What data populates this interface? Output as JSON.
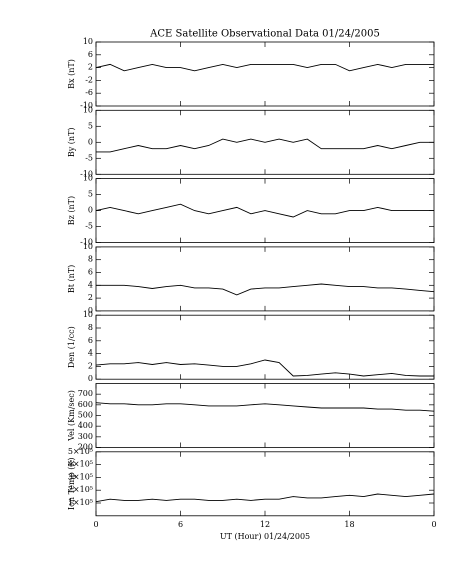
{
  "chart_data": [
    {
      "type": "line",
      "title": "ACE Satellite Observational Data   01/24/2005",
      "y_label": "Bx (nT)",
      "x": [
        0,
        1,
        2,
        3,
        4,
        5,
        6,
        7,
        8,
        9,
        10,
        11,
        12,
        13,
        14,
        15,
        16,
        17,
        18,
        19,
        20,
        21,
        22,
        23,
        24
      ],
      "series": [
        {
          "color": "#000000",
          "values": [
            2,
            3,
            1,
            2,
            3,
            2,
            2,
            1,
            2,
            3,
            2,
            3,
            3,
            3,
            3,
            2,
            3,
            3,
            1,
            2,
            3,
            2,
            3,
            3,
            3
          ]
        }
      ],
      "xlim": [
        0,
        24
      ],
      "xticks": [
        0,
        6,
        12,
        18,
        {
          "value": 24,
          "label": "0"
        }
      ],
      "ylim": [
        -10,
        10
      ],
      "yticks": [
        -10,
        -6,
        -2,
        2,
        6,
        10
      ]
    },
    {
      "type": "line",
      "y_label": "By (nT)",
      "x": [
        0,
        1,
        2,
        3,
        4,
        5,
        6,
        7,
        8,
        9,
        10,
        11,
        12,
        13,
        14,
        15,
        16,
        17,
        18,
        19,
        20,
        21,
        22,
        23,
        24
      ],
      "series": [
        {
          "color": "#000000",
          "values": [
            -3,
            -3,
            -2,
            -1,
            -2,
            -2,
            -1,
            -2,
            -1,
            1,
            0,
            1,
            0,
            1,
            0,
            1,
            -2,
            -2,
            -2,
            -2,
            -1,
            -2,
            -1,
            0,
            0
          ]
        }
      ],
      "xlim": [
        0,
        24
      ],
      "xticks": [
        0,
        6,
        12,
        18,
        {
          "value": 24,
          "label": "0"
        }
      ],
      "ylim": [
        -10,
        10
      ],
      "yticks": [
        -10,
        -5,
        0,
        5,
        10
      ]
    },
    {
      "type": "line",
      "y_label": "Bz (nT)",
      "x": [
        0,
        1,
        2,
        3,
        4,
        5,
        6,
        7,
        8,
        9,
        10,
        11,
        12,
        13,
        14,
        15,
        16,
        17,
        18,
        19,
        20,
        21,
        22,
        23,
        24
      ],
      "series": [
        {
          "color": "#000000",
          "values": [
            0,
            1,
            0,
            -1,
            0,
            1,
            2,
            0,
            -1,
            0,
            1,
            -1,
            0,
            -1,
            -2,
            0,
            -1,
            -1,
            0,
            0,
            1,
            0,
            0,
            0,
            0
          ]
        }
      ],
      "xlim": [
        0,
        24
      ],
      "xticks": [
        0,
        6,
        12,
        18,
        {
          "value": 24,
          "label": "0"
        }
      ],
      "ylim": [
        -10,
        10
      ],
      "yticks": [
        -10,
        -5,
        0,
        5,
        10
      ]
    },
    {
      "type": "line",
      "y_label": "Bt (nT)",
      "x": [
        0,
        1,
        2,
        3,
        4,
        5,
        6,
        7,
        8,
        9,
        10,
        11,
        12,
        13,
        14,
        15,
        16,
        17,
        18,
        19,
        20,
        21,
        22,
        23,
        24
      ],
      "series": [
        {
          "color": "#000000",
          "values": [
            4,
            4,
            4,
            3.8,
            3.5,
            3.8,
            4,
            3.6,
            3.6,
            3.4,
            2.5,
            3.4,
            3.6,
            3.6,
            3.8,
            4,
            4.2,
            4,
            3.8,
            3.8,
            3.6,
            3.6,
            3.4,
            3.2,
            3
          ]
        }
      ],
      "xlim": [
        0,
        24
      ],
      "xticks": [
        0,
        6,
        12,
        18,
        {
          "value": 24,
          "label": "0"
        }
      ],
      "ylim": [
        0,
        10
      ],
      "yticks": [
        0,
        2,
        4,
        6,
        8,
        10
      ]
    },
    {
      "type": "line",
      "y_label": "Den (1/cc)",
      "x": [
        0,
        1,
        2,
        3,
        4,
        5,
        6,
        7,
        8,
        9,
        10,
        11,
        12,
        13,
        14,
        15,
        16,
        17,
        18,
        19,
        20,
        21,
        22,
        23,
        24
      ],
      "series": [
        {
          "color": "#000000",
          "values": [
            2.2,
            2.4,
            2.4,
            2.6,
            2.3,
            2.6,
            2.3,
            2.4,
            2.2,
            2,
            2,
            2.4,
            3,
            2.6,
            0.5,
            0.6,
            0.8,
            1,
            0.8,
            0.5,
            0.7,
            0.9,
            0.6,
            0.5,
            0.5
          ]
        }
      ],
      "xlim": [
        0,
        24
      ],
      "xticks": [
        0,
        6,
        12,
        18,
        {
          "value": 24,
          "label": "0"
        }
      ],
      "ylim": [
        0,
        10
      ],
      "yticks": [
        0,
        2,
        4,
        6,
        8,
        10
      ]
    },
    {
      "type": "line",
      "y_label": "Vel (Km/sec)",
      "x": [
        0,
        1,
        2,
        3,
        4,
        5,
        6,
        7,
        8,
        9,
        10,
        11,
        12,
        13,
        14,
        15,
        16,
        17,
        18,
        19,
        20,
        21,
        22,
        23,
        24
      ],
      "series": [
        {
          "color": "#000000",
          "values": [
            620,
            610,
            610,
            600,
            600,
            610,
            610,
            600,
            590,
            590,
            590,
            600,
            610,
            600,
            590,
            580,
            570,
            570,
            570,
            570,
            560,
            560,
            550,
            550,
            540
          ]
        }
      ],
      "xlim": [
        0,
        24
      ],
      "xticks": [
        0,
        6,
        12,
        18,
        {
          "value": 24,
          "label": "0"
        }
      ],
      "ylim": [
        200,
        800
      ],
      "yticks": [
        200,
        300,
        400,
        500,
        600,
        700
      ]
    },
    {
      "type": "line",
      "y_label": "Ion Temp (K)",
      "x_label": "UT (Hour)  01/24/2005",
      "x": [
        0,
        1,
        2,
        3,
        4,
        5,
        6,
        7,
        8,
        9,
        10,
        11,
        12,
        13,
        14,
        15,
        16,
        17,
        18,
        19,
        20,
        21,
        22,
        23,
        24
      ],
      "series": [
        {
          "color": "#000000",
          "values": [
            110000,
            130000,
            120000,
            120000,
            130000,
            120000,
            130000,
            130000,
            120000,
            120000,
            130000,
            120000,
            130000,
            130000,
            150000,
            140000,
            140000,
            150000,
            160000,
            150000,
            170000,
            160000,
            150000,
            160000,
            170000
          ]
        }
      ],
      "xlim": [
        0,
        24
      ],
      "xticks": [
        0,
        6,
        12,
        18,
        {
          "value": 24,
          "label": "0"
        }
      ],
      "ylim": [
        0,
        500000
      ],
      "yticks": [
        {
          "value": 100000,
          "label": "1×10⁵"
        },
        {
          "value": 200000,
          "label": "2×10⁵"
        },
        {
          "value": 300000,
          "label": "3×10⁵"
        },
        {
          "value": 400000,
          "label": "4×10⁵"
        },
        {
          "value": 500000,
          "label": "5×10⁵"
        }
      ]
    }
  ]
}
